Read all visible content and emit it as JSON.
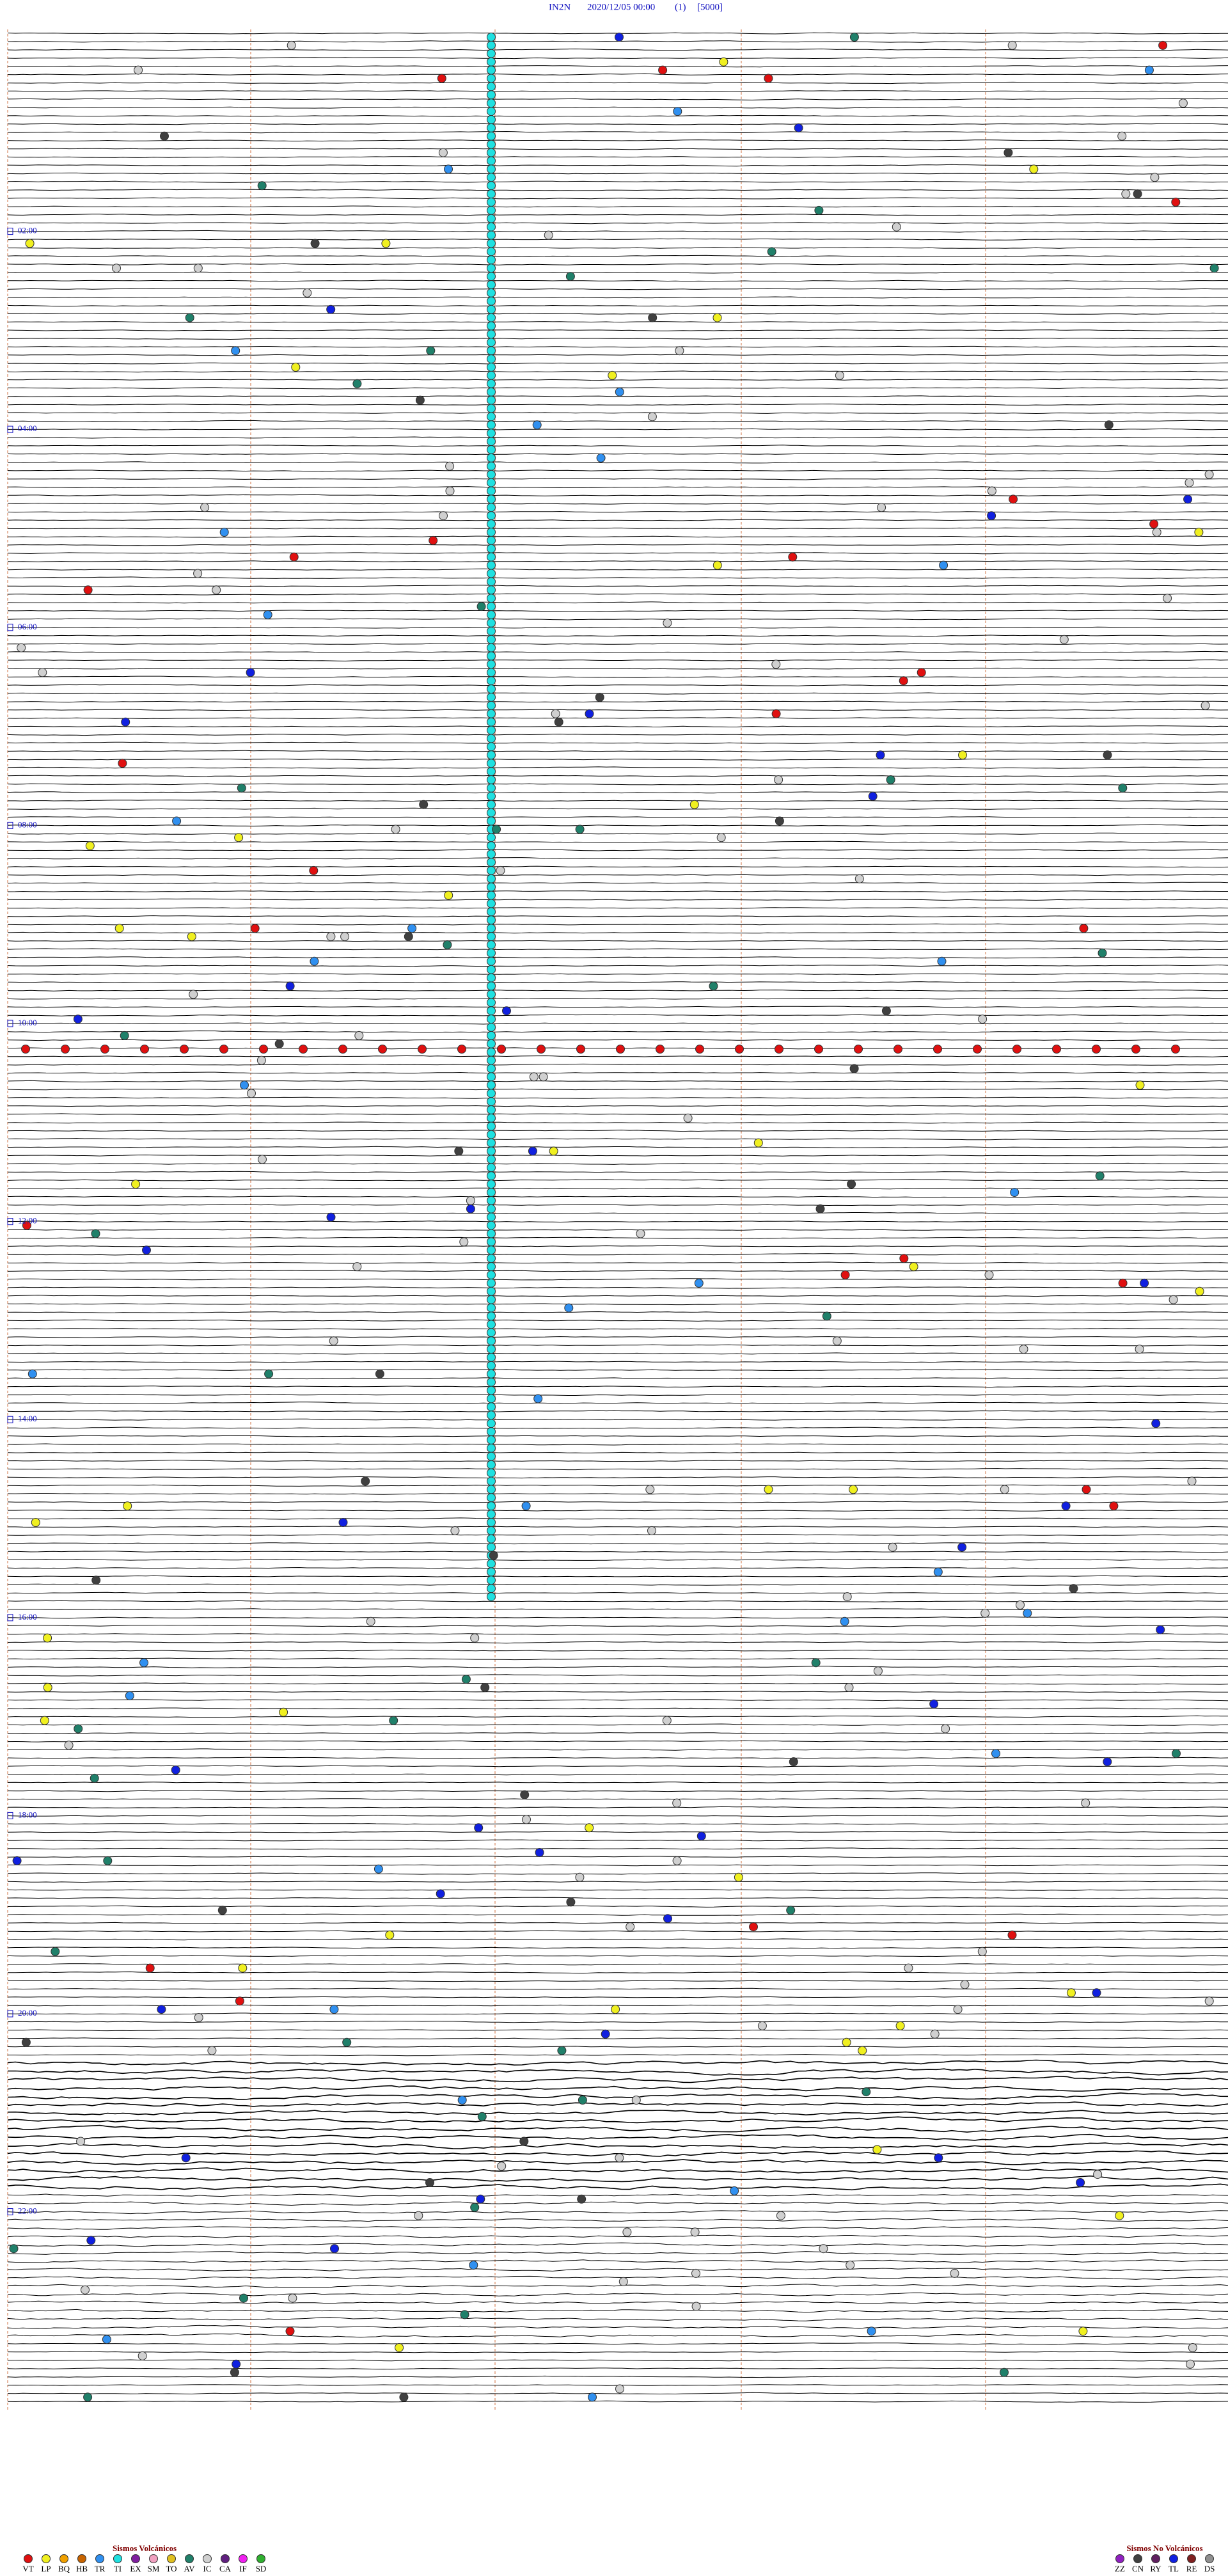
{
  "header": {
    "station": "IN2N",
    "datetime": "2020/12/05 00:00",
    "channel": "(1)",
    "scale": "[5000]"
  },
  "hour_labels": [
    "02:00",
    "04:00",
    "06:00",
    "08:00",
    "10:00",
    "12:00",
    "14:00",
    "16:00",
    "18:00",
    "20:00",
    "22:00"
  ],
  "legend": {
    "volcanic": {
      "title": "Sismos Volcánicos",
      "items": [
        {
          "code": "VT",
          "color": "#e01010"
        },
        {
          "code": "LP",
          "color": "#f0f020"
        },
        {
          "code": "BQ",
          "color": "#f0a000"
        },
        {
          "code": "HB",
          "color": "#c86400"
        },
        {
          "code": "TR",
          "color": "#3090f0"
        },
        {
          "code": "TI",
          "color": "#20e0e0"
        },
        {
          "code": "EX",
          "color": "#8020a0"
        },
        {
          "code": "SM",
          "color": "#f0a0c0"
        },
        {
          "code": "TO",
          "color": "#e0c020"
        },
        {
          "code": "AV",
          "color": "#20806a"
        },
        {
          "code": "IC",
          "color": "#d0d0d0"
        },
        {
          "code": "CA",
          "color": "#602080"
        },
        {
          "code": "IF",
          "color": "#f020f0"
        },
        {
          "code": "SD",
          "color": "#30b030"
        }
      ]
    },
    "non_volcanic": {
      "title": "Sismos No Volcánicos",
      "items": [
        {
          "code": "ZZ",
          "color": "#9020c0"
        },
        {
          "code": "CN",
          "color": "#404040"
        },
        {
          "code": "RY",
          "color": "#602060"
        },
        {
          "code": "TL",
          "color": "#1020e0"
        },
        {
          "code": "RE",
          "color": "#802020"
        },
        {
          "code": "DS",
          "color": "#909090"
        }
      ]
    }
  }
}
